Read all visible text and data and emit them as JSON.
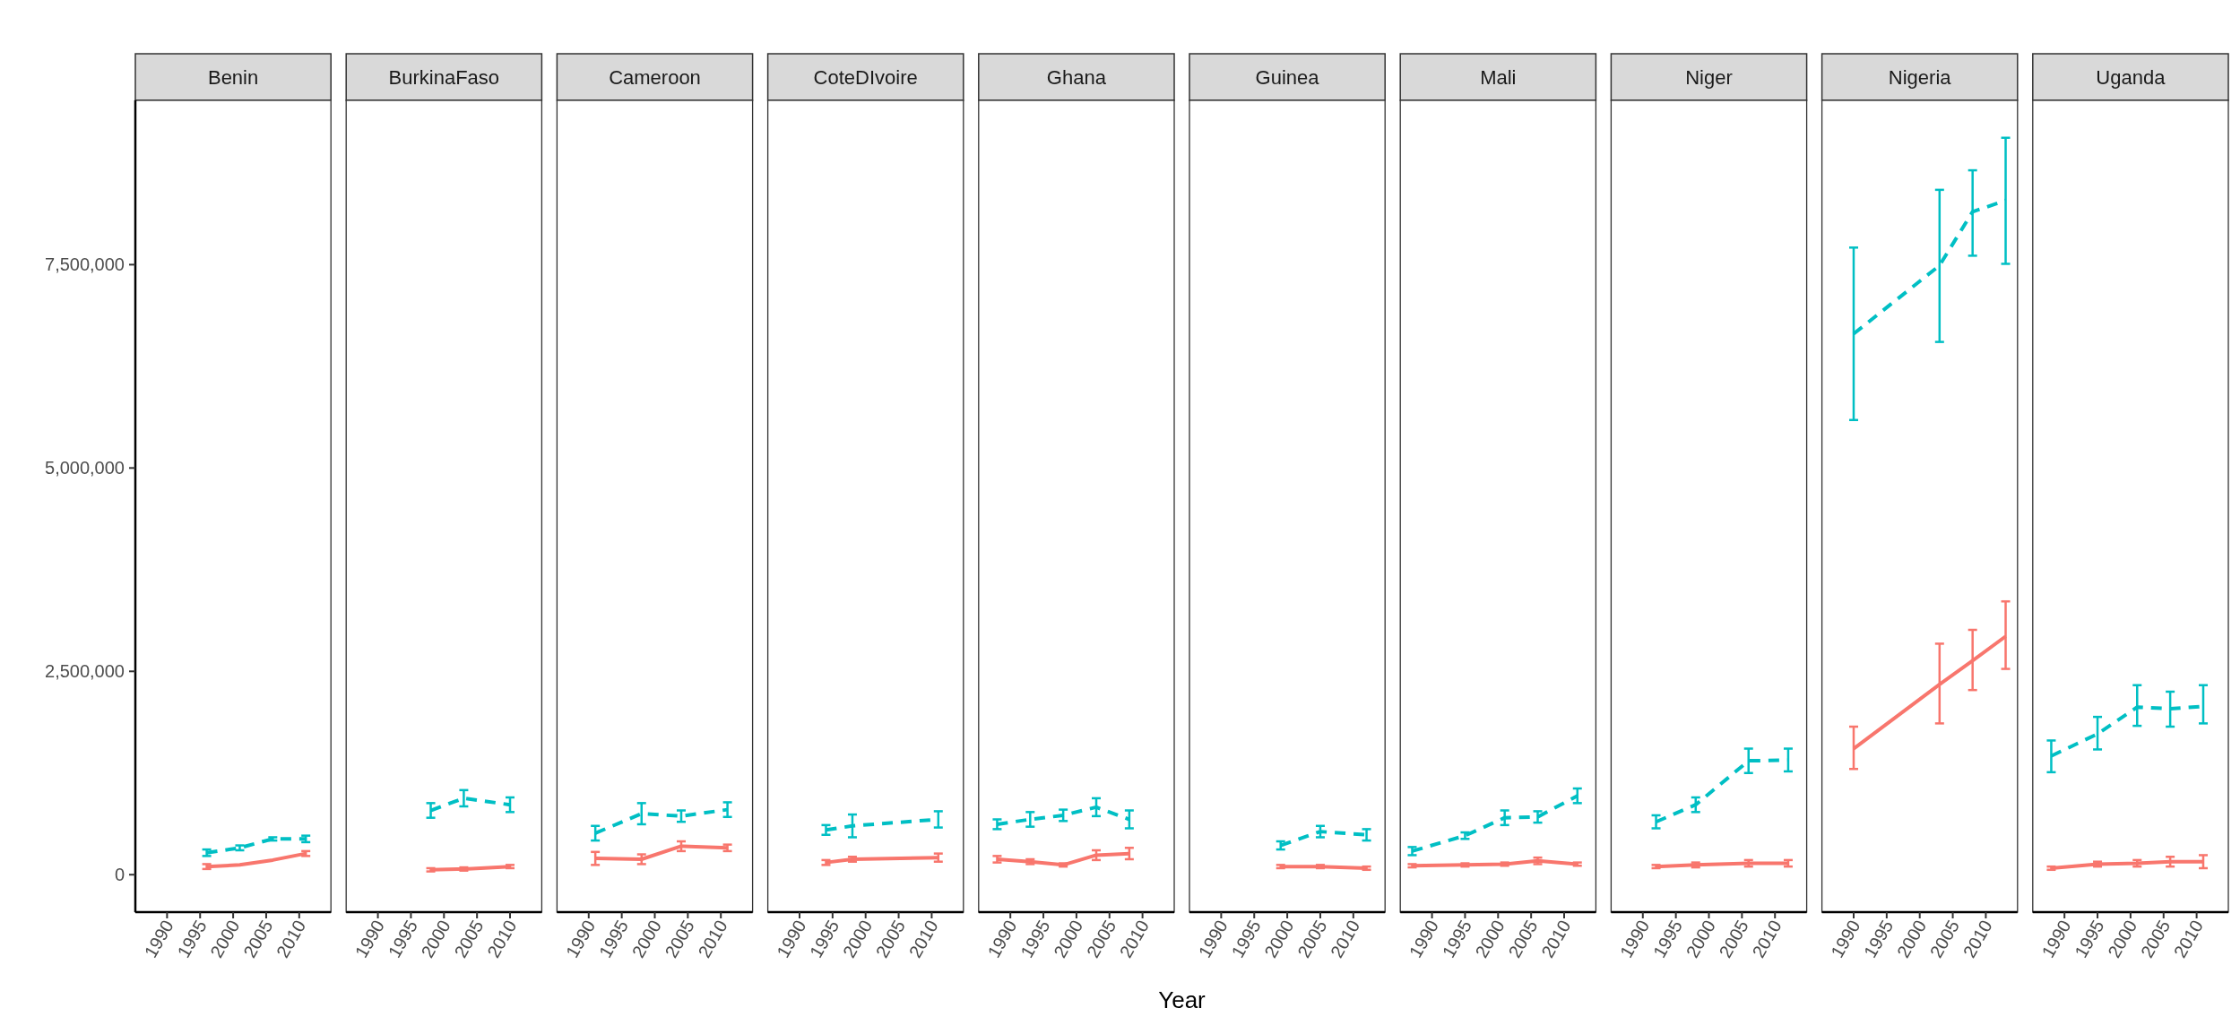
{
  "chart_data": [
    {
      "type": "line",
      "title": "Benin",
      "xlim": [
        1985.2,
        2014.8
      ],
      "xticks": [
        1990,
        1995,
        2000,
        2005,
        2010
      ],
      "ylim": [
        -460000,
        9520000
      ],
      "yticks": [
        {
          "value": 0,
          "label": "0"
        },
        {
          "value": 2500000,
          "label": "2,500,000"
        },
        {
          "value": 5000000,
          "label": "5,000,000"
        },
        {
          "value": 7500000,
          "label": "7,500,000"
        }
      ],
      "series": [
        {
          "color": "#f8766d",
          "line_style": "solid",
          "x": [
            1996,
            2001,
            2006,
            2011
          ],
          "values": [
            100000,
            120000,
            180000,
            260000
          ],
          "errors": [
            30000,
            null,
            null,
            30000
          ]
        },
        {
          "color": "#00bfc4",
          "line_style": "dashed",
          "x": [
            1996,
            2001,
            2006,
            2011
          ],
          "values": [
            270000,
            330000,
            440000,
            440000
          ],
          "errors": [
            40000,
            30000,
            20000,
            40000
          ]
        }
      ]
    },
    {
      "type": "line",
      "title": "BurkinaFaso",
      "tick_labels": "x",
      "xlim": [
        1985.2,
        2014.8
      ],
      "xticks": [
        1990,
        1995,
        2000,
        2005,
        2010
      ],
      "ylim": [
        -460000,
        9520000
      ],
      "series": [
        {
          "color": "#f8766d",
          "line_style": "solid",
          "x": [
            1998,
            2003,
            2010
          ],
          "values": [
            60000,
            70000,
            100000
          ],
          "errors": [
            20000,
            20000,
            20000
          ]
        },
        {
          "color": "#00bfc4",
          "line_style": "dashed",
          "x": [
            1998,
            2003,
            2010
          ],
          "values": [
            790000,
            940000,
            860000
          ],
          "errors": [
            90000,
            100000,
            90000
          ]
        }
      ]
    },
    {
      "type": "line",
      "title": "Cameroon",
      "tick_labels": "x",
      "xlim": [
        1985.2,
        2014.8
      ],
      "xticks": [
        1990,
        1995,
        2000,
        2005,
        2010
      ],
      "ylim": [
        -460000,
        9520000
      ],
      "series": [
        {
          "color": "#f8766d",
          "line_style": "solid",
          "x": [
            1991,
            1998,
            2004,
            2011
          ],
          "values": [
            200000,
            190000,
            350000,
            330000
          ],
          "errors": [
            80000,
            60000,
            60000,
            40000
          ]
        },
        {
          "color": "#00bfc4",
          "line_style": "dashed",
          "x": [
            1991,
            1998,
            2004,
            2011
          ],
          "values": [
            510000,
            750000,
            720000,
            800000
          ],
          "errors": [
            90000,
            130000,
            70000,
            90000
          ]
        }
      ]
    },
    {
      "type": "line",
      "title": "CoteDIvoire",
      "tick_labels": "x",
      "xlim": [
        1985.2,
        2014.8
      ],
      "xticks": [
        1990,
        1995,
        2000,
        2005,
        2010
      ],
      "ylim": [
        -460000,
        9520000
      ],
      "series": [
        {
          "color": "#f8766d",
          "line_style": "solid",
          "x": [
            1994,
            1998,
            2011
          ],
          "values": [
            150000,
            190000,
            210000
          ],
          "errors": [
            30000,
            30000,
            50000
          ]
        },
        {
          "color": "#00bfc4",
          "line_style": "dashed",
          "x": [
            1994,
            1998,
            2011
          ],
          "values": [
            550000,
            600000,
            680000
          ],
          "errors": [
            60000,
            140000,
            100000
          ]
        }
      ]
    },
    {
      "type": "line",
      "title": "Ghana",
      "xlabel": "Year",
      "tick_labels": "x",
      "xlim": [
        1985.2,
        2014.8
      ],
      "xticks": [
        1990,
        1995,
        2000,
        2005,
        2010
      ],
      "ylim": [
        -460000,
        9520000
      ],
      "series": [
        {
          "color": "#f8766d",
          "line_style": "solid",
          "x": [
            1988,
            1993,
            1998,
            2003,
            2008
          ],
          "values": [
            190000,
            160000,
            120000,
            240000,
            260000
          ],
          "errors": [
            40000,
            30000,
            20000,
            60000,
            70000
          ]
        },
        {
          "color": "#00bfc4",
          "line_style": "dashed",
          "x": [
            1988,
            1993,
            1998,
            2003,
            2008
          ],
          "values": [
            620000,
            680000,
            730000,
            830000,
            680000
          ],
          "errors": [
            60000,
            90000,
            70000,
            110000,
            110000
          ]
        }
      ]
    },
    {
      "type": "line",
      "title": "Guinea",
      "tick_labels": "x",
      "xlim": [
        1985.2,
        2014.8
      ],
      "xticks": [
        1990,
        1995,
        2000,
        2005,
        2010
      ],
      "ylim": [
        -460000,
        9520000
      ],
      "series": [
        {
          "color": "#f8766d",
          "line_style": "solid",
          "x": [
            1999,
            2005,
            2012
          ],
          "values": [
            100000,
            100000,
            80000
          ],
          "errors": [
            20000,
            20000,
            20000
          ]
        },
        {
          "color": "#00bfc4",
          "line_style": "dashed",
          "x": [
            1999,
            2005,
            2012
          ],
          "values": [
            360000,
            530000,
            490000
          ],
          "errors": [
            50000,
            70000,
            70000
          ]
        }
      ]
    },
    {
      "type": "line",
      "title": "Mali",
      "tick_labels": "x",
      "xlim": [
        1985.2,
        2014.8
      ],
      "xticks": [
        1990,
        1995,
        2000,
        2005,
        2010
      ],
      "ylim": [
        -460000,
        9520000
      ],
      "series": [
        {
          "color": "#f8766d",
          "line_style": "solid",
          "x": [
            1987,
            1995,
            2001,
            2006,
            2012
          ],
          "values": [
            110000,
            120000,
            130000,
            170000,
            130000
          ],
          "errors": [
            20000,
            20000,
            20000,
            40000,
            20000
          ]
        },
        {
          "color": "#00bfc4",
          "line_style": "dashed",
          "x": [
            1987,
            1995,
            2001,
            2006,
            2012
          ],
          "values": [
            290000,
            480000,
            700000,
            710000,
            970000
          ],
          "errors": [
            50000,
            40000,
            90000,
            70000,
            90000
          ]
        }
      ]
    },
    {
      "type": "line",
      "title": "Niger",
      "tick_labels": "x",
      "xlim": [
        1985.2,
        2014.8
      ],
      "xticks": [
        1990,
        1995,
        2000,
        2005,
        2010
      ],
      "ylim": [
        -460000,
        9520000
      ],
      "series": [
        {
          "color": "#f8766d",
          "line_style": "solid",
          "x": [
            1992,
            1998,
            2006,
            2012
          ],
          "values": [
            100000,
            120000,
            140000,
            140000
          ],
          "errors": [
            20000,
            30000,
            40000,
            40000
          ]
        },
        {
          "color": "#00bfc4",
          "line_style": "dashed",
          "x": [
            1992,
            1998,
            2006,
            2012
          ],
          "values": [
            650000,
            860000,
            1400000,
            1410000
          ],
          "errors": [
            80000,
            90000,
            150000,
            140000
          ]
        }
      ]
    },
    {
      "type": "line",
      "title": "Nigeria",
      "tick_labels": "x",
      "xlim": [
        1985.2,
        2014.8
      ],
      "xticks": [
        1990,
        1995,
        2000,
        2005,
        2010
      ],
      "ylim": [
        -460000,
        9520000
      ],
      "series": [
        {
          "color": "#f8766d",
          "line_style": "solid",
          "x": [
            1990,
            2003,
            2008,
            2013
          ],
          "values": [
            1550000,
            2340000,
            2630000,
            2930000
          ],
          "errors": [
            [
              1300000,
              1820000
            ],
            [
              1860000,
              2840000
            ],
            [
              2270000,
              3010000
            ],
            [
              2530000,
              3360000
            ]
          ]
        },
        {
          "color": "#00bfc4",
          "line_style": "dashed",
          "x": [
            1990,
            2003,
            2008,
            2013
          ],
          "values": [
            6650000,
            7490000,
            8150000,
            8290000
          ],
          "errors": [
            [
              5590000,
              7710000
            ],
            [
              6550000,
              8420000
            ],
            [
              7610000,
              8660000
            ],
            [
              7510000,
              9060000
            ]
          ]
        }
      ]
    },
    {
      "type": "line",
      "title": "Uganda",
      "tick_labels": "x",
      "xlim": [
        1985.2,
        2014.8
      ],
      "xticks": [
        1990,
        1995,
        2000,
        2005,
        2010
      ],
      "ylim": [
        -460000,
        9520000
      ],
      "series": [
        {
          "color": "#f8766d",
          "line_style": "solid",
          "x": [
            1988,
            1995,
            2001,
            2006,
            2011
          ],
          "values": [
            80000,
            130000,
            140000,
            160000,
            160000
          ],
          "errors": [
            20000,
            30000,
            40000,
            60000,
            80000
          ]
        },
        {
          "color": "#00bfc4",
          "line_style": "dashed",
          "x": [
            1988,
            1995,
            2001,
            2006,
            2011
          ],
          "values": [
            1460000,
            1730000,
            2060000,
            2040000,
            2070000
          ],
          "errors": [
            [
              1260000,
              1650000
            ],
            [
              1540000,
              1940000
            ],
            [
              1830000,
              2330000
            ],
            [
              1820000,
              2250000
            ],
            [
              1860000,
              2330000
            ]
          ]
        }
      ]
    }
  ]
}
